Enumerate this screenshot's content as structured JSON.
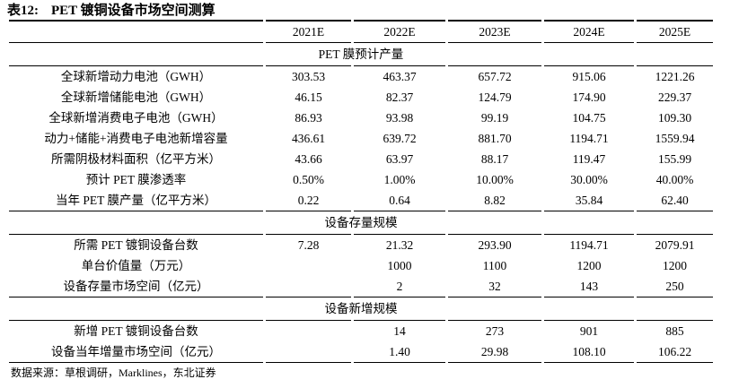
{
  "title": {
    "tag": "表12:",
    "text": "PET 镀铜设备市场空间测算"
  },
  "table": {
    "year_headers": [
      "2021E",
      "2022E",
      "2023E",
      "2024E",
      "2025E"
    ],
    "sections": [
      {
        "header": "PET 膜预计产量",
        "rows": [
          {
            "label": "全球新增动力电池（GWH）",
            "values": [
              "303.53",
              "463.37",
              "657.72",
              "915.06",
              "1221.26"
            ]
          },
          {
            "label": "全球新增储能电池（GWH）",
            "values": [
              "46.15",
              "82.37",
              "124.79",
              "174.90",
              "229.37"
            ]
          },
          {
            "label": "全球新增消费电子电池（GWH）",
            "values": [
              "86.93",
              "93.98",
              "99.19",
              "104.75",
              "109.30"
            ]
          },
          {
            "label": "动力+储能+消费电子电池新增容量",
            "values": [
              "436.61",
              "639.72",
              "881.70",
              "1194.71",
              "1559.94"
            ]
          },
          {
            "label": "所需阴极材料面积（亿平方米）",
            "values": [
              "43.66",
              "63.97",
              "88.17",
              "119.47",
              "155.99"
            ]
          },
          {
            "label": "预计 PET 膜渗透率",
            "values": [
              "0.50%",
              "1.00%",
              "10.00%",
              "30.00%",
              "40.00%"
            ]
          },
          {
            "label": "当年 PET 膜产量（亿平方米）",
            "values": [
              "0.22",
              "0.64",
              "8.82",
              "35.84",
              "62.40"
            ]
          }
        ]
      },
      {
        "header": "设备存量规模",
        "rows": [
          {
            "label": "所需 PET 镀铜设备台数",
            "values": [
              "7.28",
              "21.32",
              "293.90",
              "1194.71",
              "2079.91"
            ]
          },
          {
            "label": "单台价值量（万元）",
            "values": [
              "",
              "1000",
              "1100",
              "1200",
              "1200"
            ]
          },
          {
            "label": "设备存量市场空间（亿元）",
            "values": [
              "",
              "2",
              "32",
              "143",
              "250"
            ]
          }
        ]
      },
      {
        "header": "设备新增规模",
        "rows": [
          {
            "label": "新增 PET 镀铜设备台数",
            "values": [
              "",
              "14",
              "273",
              "901",
              "885"
            ]
          },
          {
            "label": "设备当年增量市场空间（亿元）",
            "values": [
              "",
              "1.40",
              "29.98",
              "108.10",
              "106.22"
            ]
          }
        ]
      }
    ]
  },
  "source_note": "数据来源：草根调研，Marklines，东北证券"
}
